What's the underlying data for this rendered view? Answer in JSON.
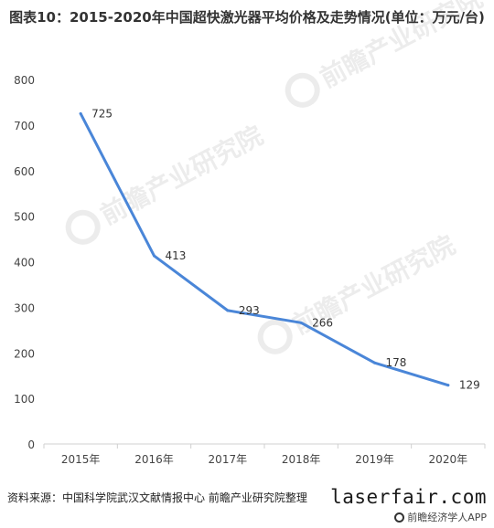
{
  "title": "图表10：2015-2020年中国超快激光器平均价格及走势情况(单位：万元/台)",
  "source": "资料来源：中国科学院武汉文献情报中心 前瞻产业研究院整理",
  "footer": {
    "site": "laserfair.com",
    "app": "前瞻经济学人APP"
  },
  "watermark_text": "前瞻产业研究院",
  "chart_data": {
    "type": "line",
    "title": "图表10：2015-2020年中国超快激光器平均价格及走势情况(单位：万元/台)",
    "categories": [
      "2015年",
      "2016年",
      "2017年",
      "2018年",
      "2019年",
      "2020年"
    ],
    "values": [
      725,
      413,
      293,
      266,
      178,
      129
    ],
    "data_labels": [
      "725",
      "413",
      "293",
      "266",
      "178",
      "129"
    ],
    "ylim": [
      0,
      800
    ],
    "yticks": [
      0,
      100,
      200,
      300,
      400,
      500,
      600,
      700,
      800
    ],
    "line_color": "#4a86d8",
    "grid": false,
    "legend": "none"
  }
}
